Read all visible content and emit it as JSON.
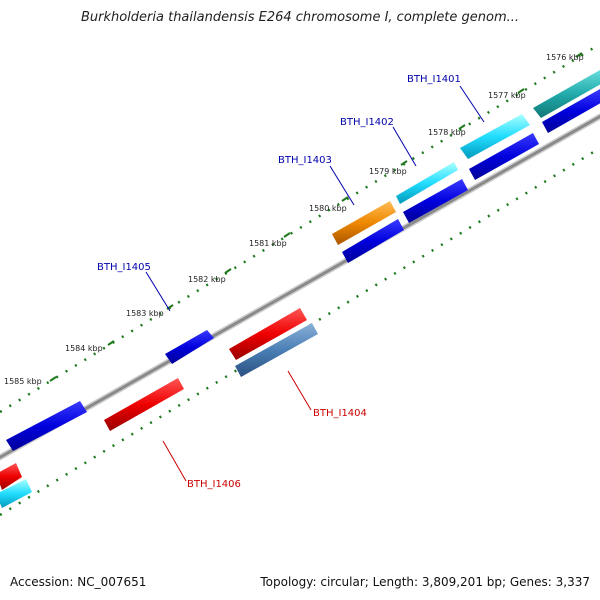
{
  "title": "Burkholderia thailandensis E264 chromosome I, complete genom...",
  "footer": {
    "accession": "Accession: NC_007651",
    "stats": "Topology: circular; Length: 3,809,201 bp; Genes: 3,337"
  },
  "colors": {
    "backbone": "#8a8a8a",
    "ticks": "#1f7a1f",
    "forward_label": "#0000aa",
    "reverse_label": "#cc0000"
  },
  "ruler_kbp": [
    1576,
    1577,
    1578,
    1579,
    1580,
    1581,
    1582,
    1583,
    1584,
    1585
  ],
  "ruler_labels": [
    "1576 kbp",
    "1577 kbp",
    "1578 kbp",
    "1579 kbp",
    "1580 kbp",
    "1581 kbp",
    "1582 kbp",
    "1583 kbp",
    "1584 kbp",
    "1585 kbp"
  ],
  "gene_labels": {
    "BTH_I1401": "BTH_I1401",
    "BTH_I1402": "BTH_I1402",
    "BTH_I1403": "BTH_I1403",
    "BTH_I1404": "BTH_I1404",
    "BTH_I1405": "BTH_I1405",
    "BTH_I1406": "BTH_I1406"
  }
}
